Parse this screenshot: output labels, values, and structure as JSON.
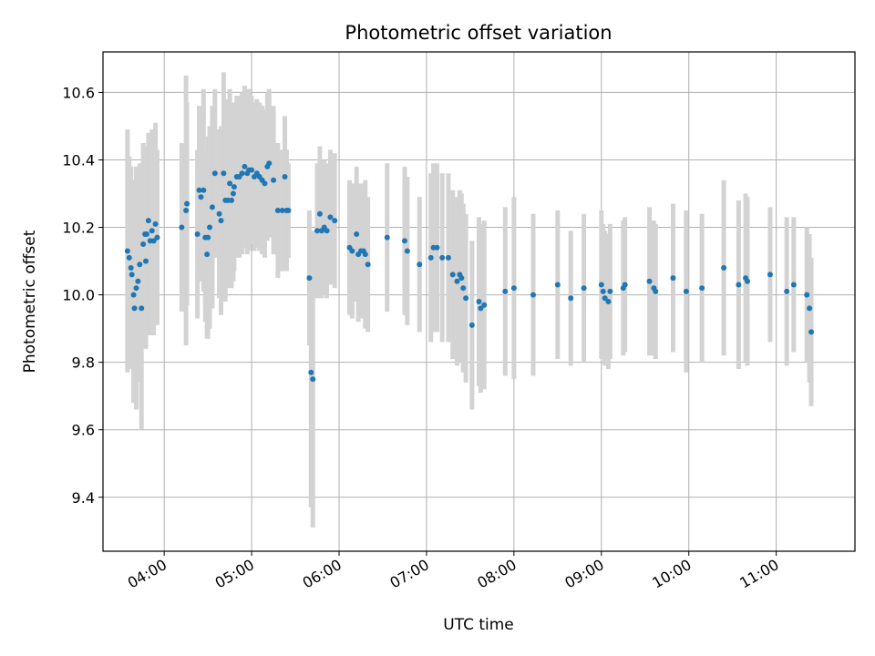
{
  "chart_data": {
    "type": "scatter",
    "title": "Photometric offset variation",
    "xlabel": "UTC time",
    "ylabel": "Photometric offset",
    "x_unit": "hours UTC",
    "xlim": [
      3.3,
      11.9
    ],
    "ylim": [
      9.24,
      10.72
    ],
    "grid": true,
    "x_ticks": [
      {
        "value": 4,
        "label": "04:00"
      },
      {
        "value": 5,
        "label": "05:00"
      },
      {
        "value": 6,
        "label": "06:00"
      },
      {
        "value": 7,
        "label": "07:00"
      },
      {
        "value": 8,
        "label": "08:00"
      },
      {
        "value": 9,
        "label": "09:00"
      },
      {
        "value": 10,
        "label": "10:00"
      },
      {
        "value": 11,
        "label": "11:00"
      }
    ],
    "y_ticks": [
      {
        "value": 9.4,
        "label": "9.4"
      },
      {
        "value": 9.6,
        "label": "9.6"
      },
      {
        "value": 9.8,
        "label": "9.8"
      },
      {
        "value": 10.0,
        "label": "10.0"
      },
      {
        "value": 10.2,
        "label": "10.2"
      },
      {
        "value": 10.4,
        "label": "10.4"
      },
      {
        "value": 10.6,
        "label": "10.6"
      }
    ],
    "colors": {
      "point": "#1f77b4",
      "errorbar": "#d3d3d3",
      "grid": "#b0b0b0"
    },
    "series": [
      {
        "points": [
          [
            3.58,
            10.13,
            0.36
          ],
          [
            3.6,
            10.11,
            0.3
          ],
          [
            3.62,
            10.08,
            0.3
          ],
          [
            3.63,
            10.06,
            0.28
          ],
          [
            3.65,
            10.0,
            0.32
          ],
          [
            3.66,
            9.96,
            0.28
          ],
          [
            3.68,
            10.02,
            0.36
          ],
          [
            3.7,
            10.04,
            0.3
          ],
          [
            3.72,
            10.09,
            0.3
          ],
          [
            3.74,
            9.96,
            0.36
          ],
          [
            3.76,
            10.15,
            0.3
          ],
          [
            3.78,
            10.18,
            0.26
          ],
          [
            3.79,
            10.1,
            0.26
          ],
          [
            3.8,
            10.18,
            0.26
          ],
          [
            3.82,
            10.22,
            0.26
          ],
          [
            3.84,
            10.16,
            0.28
          ],
          [
            3.86,
            10.19,
            0.3
          ],
          [
            3.88,
            10.16,
            0.28
          ],
          [
            3.9,
            10.21,
            0.3
          ],
          [
            3.92,
            10.17,
            0.26
          ],
          [
            4.2,
            10.2,
            0.25
          ],
          [
            4.25,
            10.25,
            0.4
          ],
          [
            4.26,
            10.27,
            0.3
          ],
          [
            4.38,
            10.18,
            0.25
          ],
          [
            4.4,
            10.31,
            0.25
          ],
          [
            4.42,
            10.29,
            0.25
          ],
          [
            4.45,
            10.31,
            0.3
          ],
          [
            4.47,
            10.17,
            0.25
          ],
          [
            4.49,
            10.12,
            0.25
          ],
          [
            4.5,
            10.17,
            0.3
          ],
          [
            4.52,
            10.2,
            0.3
          ],
          [
            4.55,
            10.26,
            0.3
          ],
          [
            4.58,
            10.36,
            0.25
          ],
          [
            4.63,
            10.24,
            0.25
          ],
          [
            4.65,
            10.22,
            0.28
          ],
          [
            4.68,
            10.36,
            0.3
          ],
          [
            4.7,
            10.28,
            0.3
          ],
          [
            4.73,
            10.28,
            0.26
          ],
          [
            4.75,
            10.33,
            0.28
          ],
          [
            4.77,
            10.28,
            0.26
          ],
          [
            4.79,
            10.3,
            0.26
          ],
          [
            4.8,
            10.32,
            0.25
          ],
          [
            4.83,
            10.35,
            0.24
          ],
          [
            4.86,
            10.35,
            0.24
          ],
          [
            4.89,
            10.36,
            0.24
          ],
          [
            4.92,
            10.38,
            0.24
          ],
          [
            4.95,
            10.36,
            0.24
          ],
          [
            4.97,
            10.37,
            0.24
          ],
          [
            5.0,
            10.37,
            0.22
          ],
          [
            5.03,
            10.35,
            0.22
          ],
          [
            5.06,
            10.36,
            0.22
          ],
          [
            5.09,
            10.35,
            0.22
          ],
          [
            5.12,
            10.34,
            0.22
          ],
          [
            5.15,
            10.33,
            0.22
          ],
          [
            5.18,
            10.38,
            0.22
          ],
          [
            5.2,
            10.39,
            0.22
          ],
          [
            5.25,
            10.34,
            0.22
          ],
          [
            5.3,
            10.25,
            0.2
          ],
          [
            5.35,
            10.25,
            0.18
          ],
          [
            5.38,
            10.35,
            0.18
          ],
          [
            5.4,
            10.25,
            0.18
          ],
          [
            5.42,
            10.25,
            0.14
          ],
          [
            5.66,
            10.05,
            0.2
          ],
          [
            5.68,
            9.77,
            0.4
          ],
          [
            5.7,
            9.75,
            0.44
          ],
          [
            5.75,
            10.19,
            0.2
          ],
          [
            5.78,
            10.24,
            0.2
          ],
          [
            5.8,
            10.19,
            0.2
          ],
          [
            5.83,
            10.2,
            0.2
          ],
          [
            5.86,
            10.19,
            0.2
          ],
          [
            5.9,
            10.23,
            0.2
          ],
          [
            5.95,
            10.22,
            0.2
          ],
          [
            6.12,
            10.14,
            0.2
          ],
          [
            6.15,
            10.13,
            0.2
          ],
          [
            6.2,
            10.18,
            0.2
          ],
          [
            6.22,
            10.12,
            0.2
          ],
          [
            6.25,
            10.13,
            0.2
          ],
          [
            6.28,
            10.13,
            0.2
          ],
          [
            6.3,
            10.12,
            0.22
          ],
          [
            6.33,
            10.09,
            0.2
          ],
          [
            6.55,
            10.17,
            0.22
          ],
          [
            6.75,
            10.16,
            0.22
          ],
          [
            6.78,
            10.13,
            0.22
          ],
          [
            6.92,
            10.09,
            0.2
          ],
          [
            7.05,
            10.11,
            0.25
          ],
          [
            7.08,
            10.14,
            0.25
          ],
          [
            7.12,
            10.14,
            0.25
          ],
          [
            7.18,
            10.11,
            0.25
          ],
          [
            7.25,
            10.11,
            0.25
          ],
          [
            7.3,
            10.06,
            0.25
          ],
          [
            7.35,
            10.04,
            0.25
          ],
          [
            7.38,
            10.06,
            0.25
          ],
          [
            7.4,
            10.05,
            0.25
          ],
          [
            7.42,
            10.02,
            0.25
          ],
          [
            7.45,
            9.99,
            0.25
          ],
          [
            7.52,
            9.91,
            0.25
          ],
          [
            7.6,
            9.98,
            0.25
          ],
          [
            7.62,
            9.96,
            0.25
          ],
          [
            7.66,
            9.97,
            0.25
          ],
          [
            7.9,
            10.01,
            0.25
          ],
          [
            8.0,
            10.02,
            0.27
          ],
          [
            8.22,
            10.0,
            0.24
          ],
          [
            8.5,
            10.03,
            0.22
          ],
          [
            8.65,
            9.99,
            0.2
          ],
          [
            8.8,
            10.02,
            0.22
          ],
          [
            9.0,
            10.03,
            0.22
          ],
          [
            9.02,
            10.01,
            0.2
          ],
          [
            9.04,
            9.99,
            0.2
          ],
          [
            9.08,
            9.98,
            0.2
          ],
          [
            9.1,
            10.01,
            0.2
          ],
          [
            9.25,
            10.02,
            0.2
          ],
          [
            9.27,
            10.03,
            0.2
          ],
          [
            9.55,
            10.04,
            0.22
          ],
          [
            9.6,
            10.02,
            0.2
          ],
          [
            9.62,
            10.01,
            0.2
          ],
          [
            9.82,
            10.05,
            0.22
          ],
          [
            9.97,
            10.01,
            0.24
          ],
          [
            10.15,
            10.02,
            0.22
          ],
          [
            10.4,
            10.08,
            0.26
          ],
          [
            10.57,
            10.03,
            0.25
          ],
          [
            10.65,
            10.05,
            0.25
          ],
          [
            10.67,
            10.04,
            0.25
          ],
          [
            10.93,
            10.06,
            0.2
          ],
          [
            11.12,
            10.01,
            0.22
          ],
          [
            11.2,
            10.03,
            0.2
          ],
          [
            11.35,
            10.0,
            0.2
          ],
          [
            11.38,
            9.96,
            0.22
          ],
          [
            11.4,
            9.89,
            0.22
          ]
        ]
      }
    ]
  }
}
